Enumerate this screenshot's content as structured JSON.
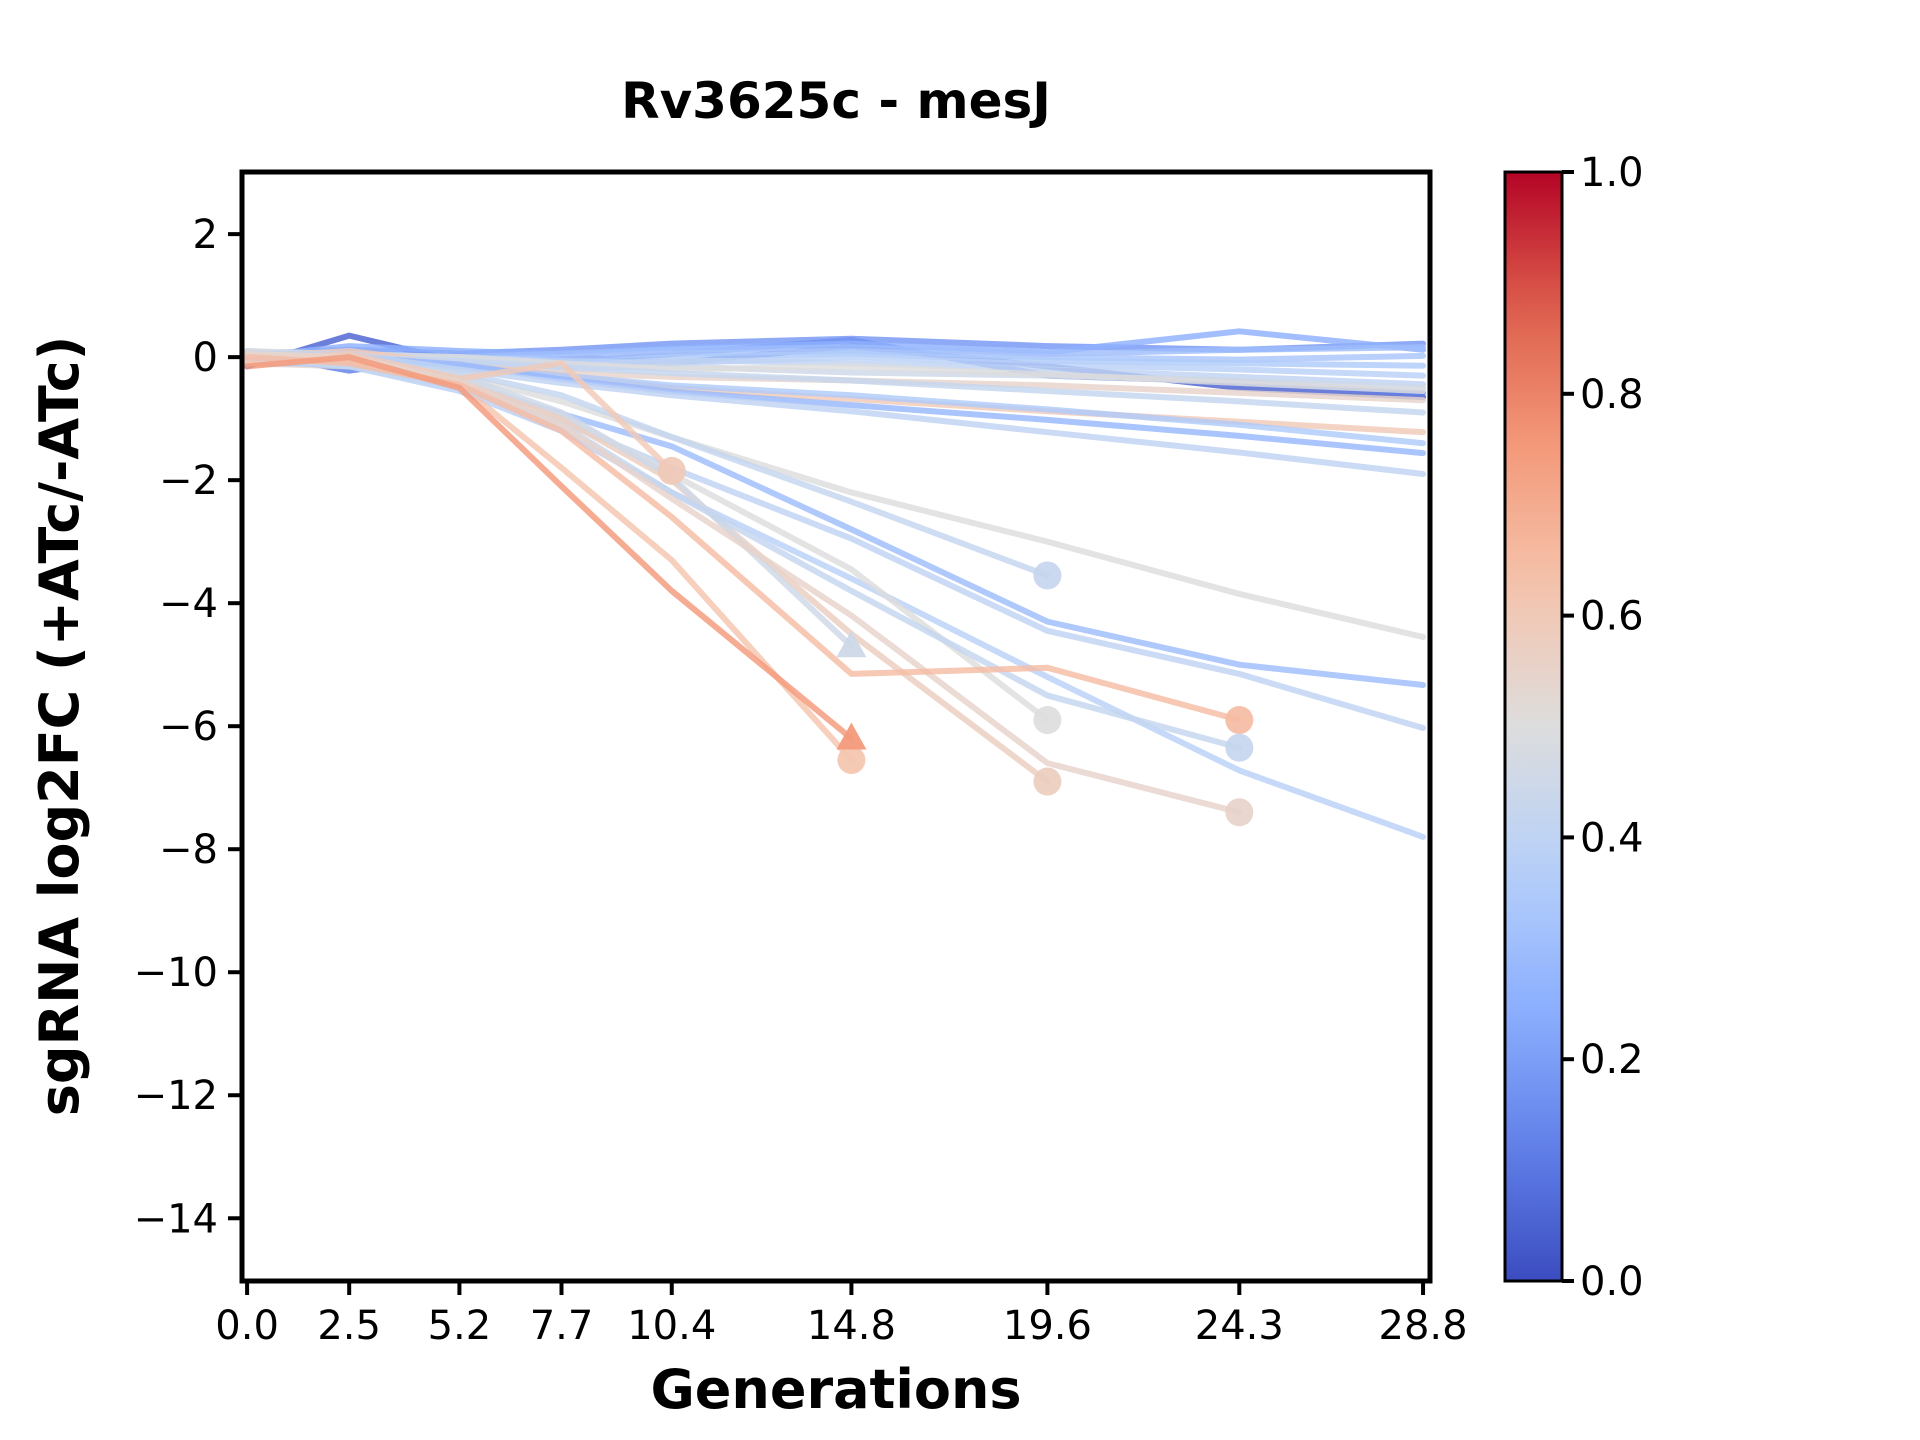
{
  "chart_data": {
    "type": "line",
    "title": "Rv3625c - mesJ",
    "xlabel": "Generations",
    "ylabel": "sgRNA log2FC (+ATc/-ATc)",
    "x_ticks": [
      0.0,
      2.5,
      5.2,
      7.7,
      10.4,
      14.8,
      19.6,
      24.3,
      28.8
    ],
    "x_tick_labels": [
      "0.0",
      "2.5",
      "5.2",
      "7.7",
      "10.4",
      "14.8",
      "19.6",
      "24.3",
      "28.8"
    ],
    "y_ticks": [
      2,
      0,
      -2,
      -4,
      -6,
      -8,
      -10,
      -12,
      -14
    ],
    "y_tick_labels": [
      "2",
      "0",
      "−2",
      "−4",
      "−6",
      "−8",
      "−10",
      "−12",
      "−14"
    ],
    "xlim": [
      -0.125,
      28.97
    ],
    "ylim": [
      -15.02,
      3.01
    ],
    "grid": false,
    "legend": "none",
    "timepoints": [
      0,
      2.5,
      5.2,
      7.7,
      10.4,
      14.8,
      19.6,
      24.3,
      28.8
    ],
    "colormap": {
      "name": "coolwarm",
      "stops": [
        [
          0.0,
          "#3b4cc0"
        ],
        [
          0.125,
          "#6282ea"
        ],
        [
          0.25,
          "#8db0fe"
        ],
        [
          0.375,
          "#b8d0f9"
        ],
        [
          0.5,
          "#dddddd"
        ],
        [
          0.625,
          "#f5c4ad"
        ],
        [
          0.75,
          "#f49a7b"
        ],
        [
          0.875,
          "#de604d"
        ],
        [
          1.0,
          "#b40426"
        ]
      ]
    },
    "colorbar": {
      "vmin": 0.0,
      "vmax": 1.0,
      "ticks": [
        0.0,
        0.2,
        0.4,
        0.6,
        0.8,
        1.0
      ],
      "tick_labels": [
        "0.0",
        "0.2",
        "0.4",
        "0.6",
        "0.8",
        "1.0"
      ],
      "position": "right"
    },
    "series": [
      {
        "color_value": 0.05,
        "marker": null,
        "values": [
          -0.15,
          0.35,
          -0.08,
          0.02,
          -0.1,
          0.18,
          -0.15,
          -0.5,
          -0.65
        ]
      },
      {
        "color_value": 0.12,
        "marker": null,
        "values": [
          0.08,
          -0.22,
          0.02,
          -0.08,
          0.05,
          0.28,
          -0.3,
          -0.4,
          -0.58
        ]
      },
      {
        "color_value": 0.18,
        "marker": null,
        "values": [
          0.05,
          0.12,
          0.06,
          0.12,
          0.22,
          0.3,
          0.18,
          0.12,
          0.22
        ]
      },
      {
        "color_value": 0.25,
        "marker": null,
        "values": [
          0.0,
          0.18,
          0.1,
          0.05,
          0.15,
          0.22,
          0.08,
          0.42,
          0.12
        ]
      },
      {
        "color_value": 0.3,
        "marker": null,
        "values": [
          -0.05,
          0.06,
          0.0,
          0.06,
          0.12,
          0.16,
          0.05,
          0.12,
          0.16
        ]
      },
      {
        "color_value": 0.33,
        "marker": null,
        "values": [
          0.1,
          0.0,
          -0.04,
          0.0,
          0.06,
          0.1,
          0.0,
          -0.04,
          0.02
        ]
      },
      {
        "color_value": 0.35,
        "marker": null,
        "values": [
          0.0,
          -0.1,
          -0.05,
          -0.1,
          0.0,
          0.06,
          -0.06,
          -0.1,
          -0.14
        ]
      },
      {
        "color_value": 0.38,
        "marker": null,
        "values": [
          -0.1,
          -0.05,
          0.0,
          -0.06,
          -0.1,
          0.0,
          -0.12,
          -0.2,
          -0.3
        ]
      },
      {
        "color_value": 0.4,
        "marker": null,
        "values": [
          0.04,
          -0.15,
          -0.1,
          -0.15,
          -0.05,
          -0.1,
          -0.2,
          -0.32,
          -0.44
        ]
      },
      {
        "color_value": 0.45,
        "marker": null,
        "values": [
          -0.05,
          0.0,
          -0.1,
          -0.2,
          -0.15,
          -0.25,
          -0.3,
          -0.38,
          -0.5
        ]
      },
      {
        "color_value": 0.5,
        "marker": null,
        "values": [
          0.1,
          0.05,
          0.0,
          -0.1,
          -0.2,
          -0.15,
          -0.28,
          -0.42,
          -0.55
        ]
      },
      {
        "color_value": 0.55,
        "marker": null,
        "values": [
          -0.1,
          -0.15,
          -0.2,
          -0.26,
          -0.32,
          -0.38,
          -0.46,
          -0.58,
          -0.7
        ]
      },
      {
        "color_value": 0.6,
        "marker": null,
        "values": [
          0.0,
          0.1,
          -0.12,
          -0.3,
          -0.5,
          -0.68,
          -0.88,
          -1.05,
          -1.22
        ]
      },
      {
        "color_value": 0.42,
        "marker": null,
        "values": [
          0.05,
          0.0,
          -0.06,
          -0.16,
          -0.26,
          -0.38,
          -0.55,
          -0.72,
          -0.9
        ]
      },
      {
        "color_value": 0.35,
        "marker": null,
        "values": [
          0.0,
          -0.06,
          -0.16,
          -0.3,
          -0.46,
          -0.62,
          -0.85,
          -1.1,
          -1.4
        ]
      },
      {
        "color_value": 0.28,
        "marker": null,
        "values": [
          -0.06,
          0.0,
          -0.12,
          -0.36,
          -0.56,
          -0.78,
          -1.02,
          -1.28,
          -1.56
        ]
      },
      {
        "color_value": 0.4,
        "marker": null,
        "values": [
          0.05,
          0.05,
          -0.2,
          -0.42,
          -0.62,
          -0.88,
          -1.22,
          -1.55,
          -1.9
        ]
      },
      {
        "color_value": 0.5,
        "marker": null,
        "values": [
          0.0,
          -0.05,
          -0.3,
          -0.72,
          -1.3,
          -2.2,
          -3.0,
          -3.85,
          -4.55
        ]
      },
      {
        "color_value": 0.3,
        "marker": null,
        "values": [
          -0.1,
          -0.1,
          -0.42,
          -0.92,
          -1.45,
          -2.8,
          -4.3,
          -5.0,
          -5.33
        ]
      },
      {
        "color_value": 0.4,
        "marker": null,
        "values": [
          0.0,
          -0.1,
          -0.5,
          -1.05,
          -1.8,
          -2.95,
          -4.45,
          -5.15,
          -6.03
        ]
      },
      {
        "color_value": 0.38,
        "marker": null,
        "values": [
          -0.05,
          -0.15,
          -0.55,
          -1.2,
          -2.2,
          -3.6,
          -5.2,
          -6.72,
          -7.8
        ]
      },
      {
        "color_value": 0.42,
        "marker": "circle",
        "values": [
          0.0,
          -0.05,
          -0.25,
          -0.62,
          -1.3,
          -2.35,
          -3.55
        ]
      },
      {
        "color_value": 0.5,
        "marker": "circle",
        "values": [
          0.05,
          0.0,
          -0.35,
          -0.95,
          -1.9,
          -3.45,
          -5.9
        ]
      },
      {
        "color_value": 0.58,
        "marker": "circle",
        "values": [
          -0.05,
          -0.1,
          -0.4,
          -1.0,
          -2.0,
          -4.5,
          -6.9
        ]
      },
      {
        "color_value": 0.45,
        "marker": "triangle",
        "values": [
          0.0,
          -0.05,
          -0.3,
          -0.9,
          -1.95,
          -4.7
        ]
      },
      {
        "color_value": 0.62,
        "marker": "circle",
        "values": [
          -0.1,
          -0.05,
          -0.45,
          -1.8,
          -3.3,
          -6.55
        ]
      },
      {
        "color_value": 0.6,
        "marker": "circle",
        "values": [
          -0.05,
          0.05,
          -0.35,
          -0.1,
          -1.85
        ]
      },
      {
        "color_value": 0.42,
        "marker": "circle",
        "values": [
          0.0,
          -0.15,
          -0.5,
          -1.1,
          -2.2,
          -3.8,
          -5.5,
          -6.35
        ]
      },
      {
        "color_value": 0.55,
        "marker": "circle",
        "values": [
          0.05,
          0.0,
          -0.4,
          -1.1,
          -2.3,
          -4.2,
          -6.6,
          -7.4
        ]
      },
      {
        "color_value": 0.65,
        "marker": "circle",
        "values": [
          0.0,
          -0.1,
          -0.45,
          -1.2,
          -2.6,
          -5.15,
          -5.05,
          -5.9
        ]
      },
      {
        "color_value": 0.75,
        "marker": "triangle",
        "values": [
          -0.15,
          0.0,
          -0.5,
          -2.1,
          -3.8,
          -6.2
        ]
      }
    ]
  }
}
